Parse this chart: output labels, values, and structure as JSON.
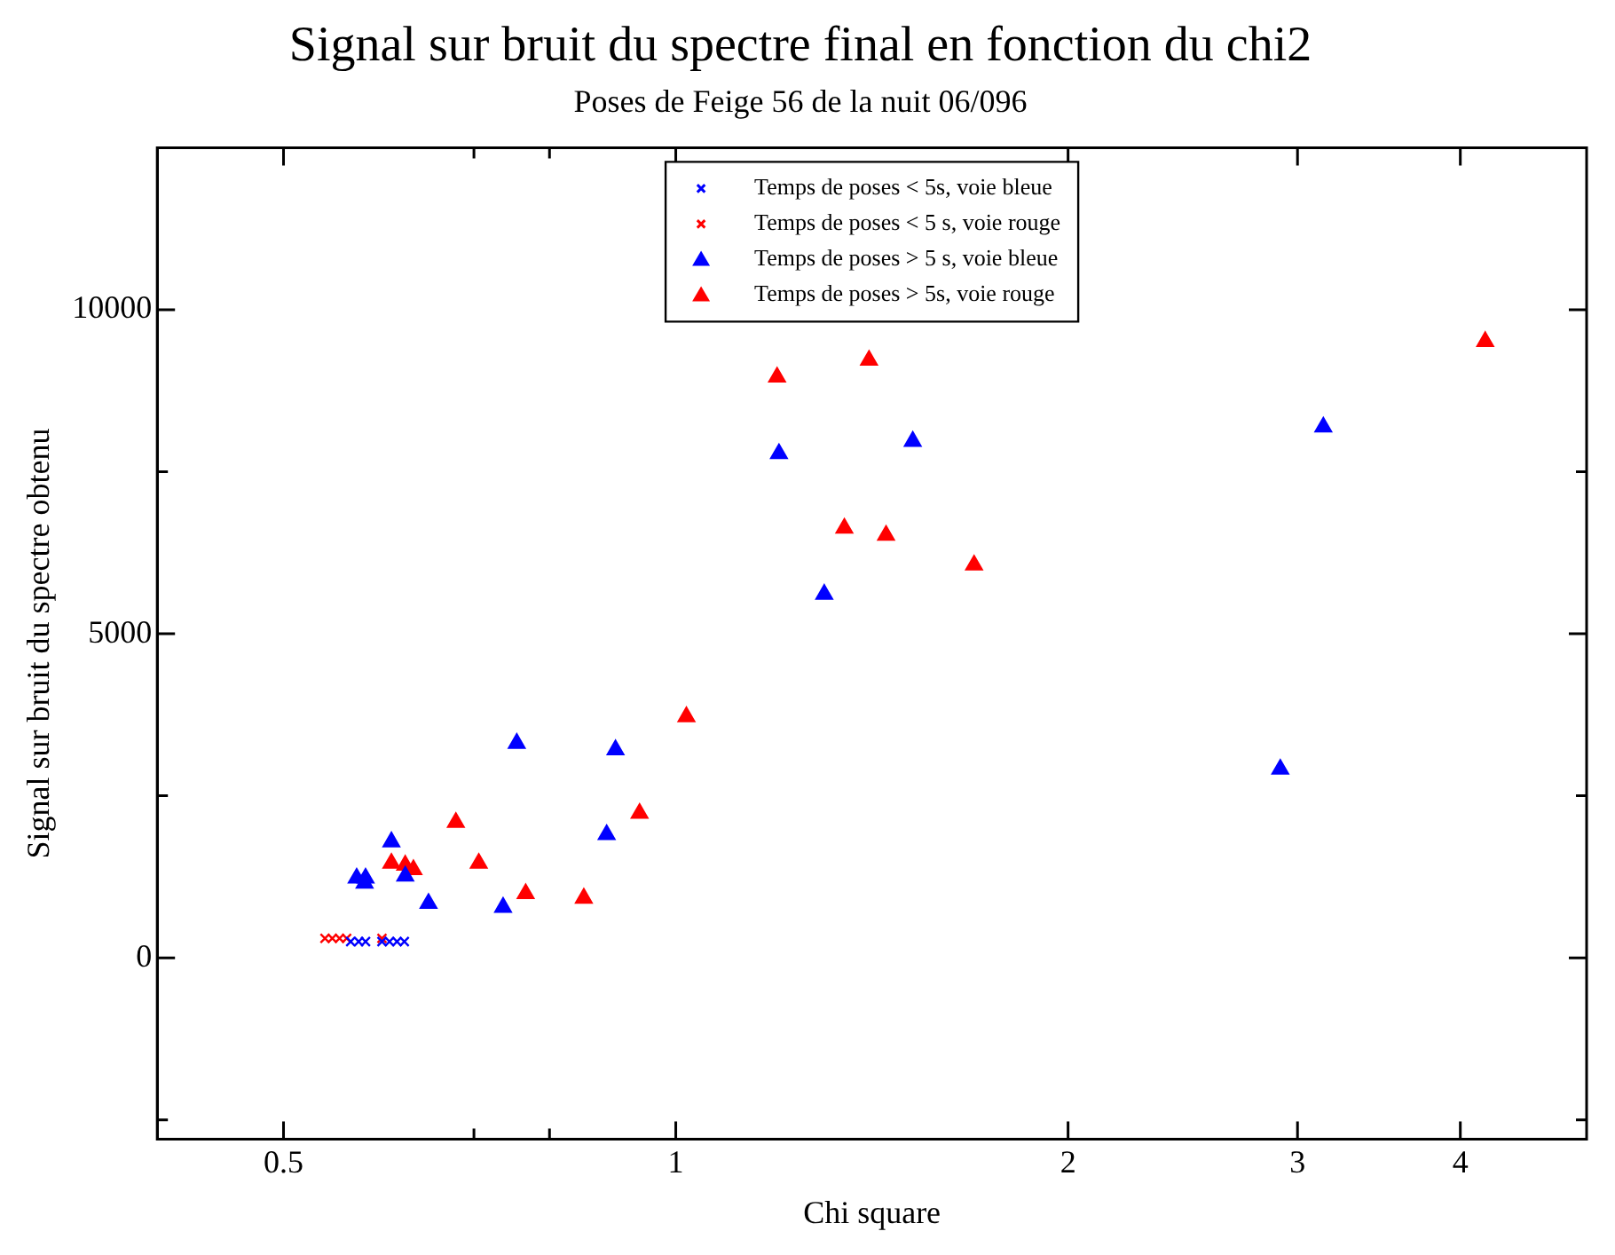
{
  "chart_data": {
    "type": "scatter",
    "title": "Signal sur bruit du spectre final en fonction du chi2",
    "subtitle": "Poses de Feige 56 de la nuit 06/096",
    "xlabel": "Chi square",
    "ylabel": "Signal sur bruit du spectre obtenu",
    "log": "x",
    "grid": false,
    "legend": "top",
    "xlim": [
      0.4,
      5
    ],
    "xticks": [
      0.5,
      {
        "value": 0.7,
        "label": null
      },
      {
        "value": 0.8,
        "label": null
      },
      1,
      2,
      3,
      4
    ],
    "ylim": [
      -2800,
      12500
    ],
    "yticks": [
      {
        "value": -2500,
        "label": null
      },
      0,
      {
        "value": 2500,
        "label": null
      },
      5000,
      {
        "value": 7500,
        "label": null
      },
      10000
    ],
    "series": [
      {
        "name": "Temps de poses < 5s, voie bleue",
        "color": "#0000ff",
        "marker": "cross",
        "x": [
          0.563,
          0.571,
          0.578,
          0.595,
          0.603,
          0.611,
          0.619
        ],
        "values": [
          250,
          250,
          250,
          250,
          250,
          250,
          250
        ]
      },
      {
        "name": "Temps de poses < 5 s, voie rouge",
        "color": "#ff0000",
        "marker": "cross",
        "x": [
          0.538,
          0.545,
          0.552,
          0.559,
          0.595
        ],
        "values": [
          300,
          300,
          300,
          300,
          300
        ]
      },
      {
        "name": "Temps de poses > 5 s, voie bleue",
        "color": "#0000ff",
        "marker": "triangle",
        "x": [
          1.2,
          1.52,
          1.3,
          3.14,
          2.91,
          0.755,
          0.899,
          0.885,
          0.605,
          0.569,
          0.578,
          0.577,
          0.62,
          0.646,
          0.737
        ],
        "values": [
          7780,
          7970,
          5610,
          8190,
          2910,
          3310,
          3210,
          1900,
          1790,
          1230,
          1230,
          1150,
          1260,
          840,
          780
        ]
      },
      {
        "name": "Temps de poses > 5s, voie rouge",
        "color": "#ff0000",
        "marker": "triangle",
        "x": [
          1.196,
          1.407,
          4.18,
          1.347,
          1.45,
          1.694,
          1.019,
          0.938,
          0.678,
          0.706,
          0.605,
          0.62,
          0.629,
          0.767,
          0.85
        ],
        "values": [
          8960,
          9220,
          9510,
          6630,
          6520,
          6060,
          3720,
          2230,
          2090,
          1460,
          1460,
          1430,
          1360,
          990,
          920
        ]
      }
    ]
  }
}
